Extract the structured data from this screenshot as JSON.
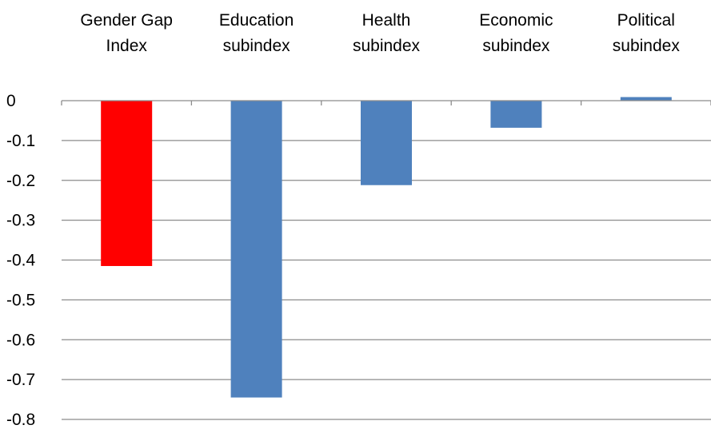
{
  "chart_data": {
    "type": "bar",
    "categories": [
      "Gender Gap Index",
      "Education subindex",
      "Health subindex",
      "Economic subindex",
      "Political subindex"
    ],
    "category_lines": [
      [
        "Gender Gap",
        "Index"
      ],
      [
        "Education",
        "subindex"
      ],
      [
        "Health",
        "subindex"
      ],
      [
        "Economic",
        "subindex"
      ],
      [
        "Political",
        "subindex"
      ]
    ],
    "values": [
      -0.415,
      -0.745,
      -0.212,
      -0.068,
      0.009
    ],
    "bar_colors": [
      "#ff0000",
      "#4f81bd",
      "#4f81bd",
      "#4f81bd",
      "#4f81bd"
    ],
    "ylim": [
      -0.8,
      0
    ],
    "yticks": [
      0,
      -0.1,
      -0.2,
      -0.3,
      -0.4,
      -0.5,
      -0.6,
      -0.7,
      -0.8
    ],
    "ytick_labels": [
      "0",
      "-0.1",
      "-0.2",
      "-0.3",
      "-0.4",
      "-0.5",
      "-0.6",
      "-0.7",
      "-0.8"
    ],
    "grid": true,
    "category_label_position": "top",
    "title": "",
    "xlabel": "",
    "ylabel": ""
  }
}
